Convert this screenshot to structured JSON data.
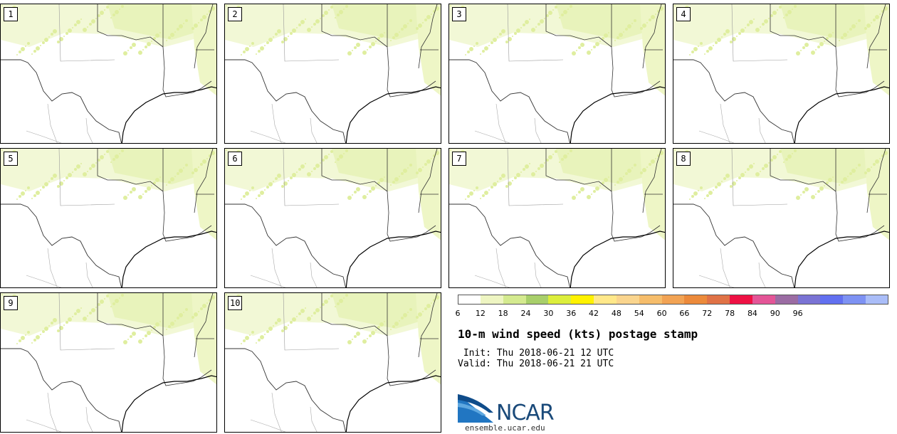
{
  "panels": [
    {
      "number": "1"
    },
    {
      "number": "2"
    },
    {
      "number": "3"
    },
    {
      "number": "4"
    },
    {
      "number": "5"
    },
    {
      "number": "6"
    },
    {
      "number": "7"
    },
    {
      "number": "8"
    },
    {
      "number": "9"
    },
    {
      "number": "10"
    }
  ],
  "colorbar": {
    "colors": [
      "#ffffff",
      "#eef5c2",
      "#d4ea8f",
      "#a8cf6a",
      "#dcee3c",
      "#fff200",
      "#ffe88a",
      "#fad58e",
      "#f6bd6b",
      "#f2a354",
      "#ec8a3b",
      "#e07246",
      "#ee1144",
      "#e45597",
      "#9b6ca3",
      "#7a73d4",
      "#6270f0",
      "#7e92f3",
      "#aabdf8"
    ],
    "tick_labels": [
      "6",
      "12",
      "18",
      "24",
      "30",
      "36",
      "42",
      "48",
      "54",
      "60",
      "66",
      "72",
      "78",
      "84",
      "90",
      "96"
    ]
  },
  "title": "10-m wind speed (kts) postage stamp",
  "init_line": " Init: Thu 2018-06-21 12 UTC",
  "valid_line": "Valid: Thu 2018-06-21 21 UTC",
  "logo": {
    "name": "ncar-logo",
    "text": "NCAR"
  },
  "site_url": "ensemble.ucar.edu"
}
